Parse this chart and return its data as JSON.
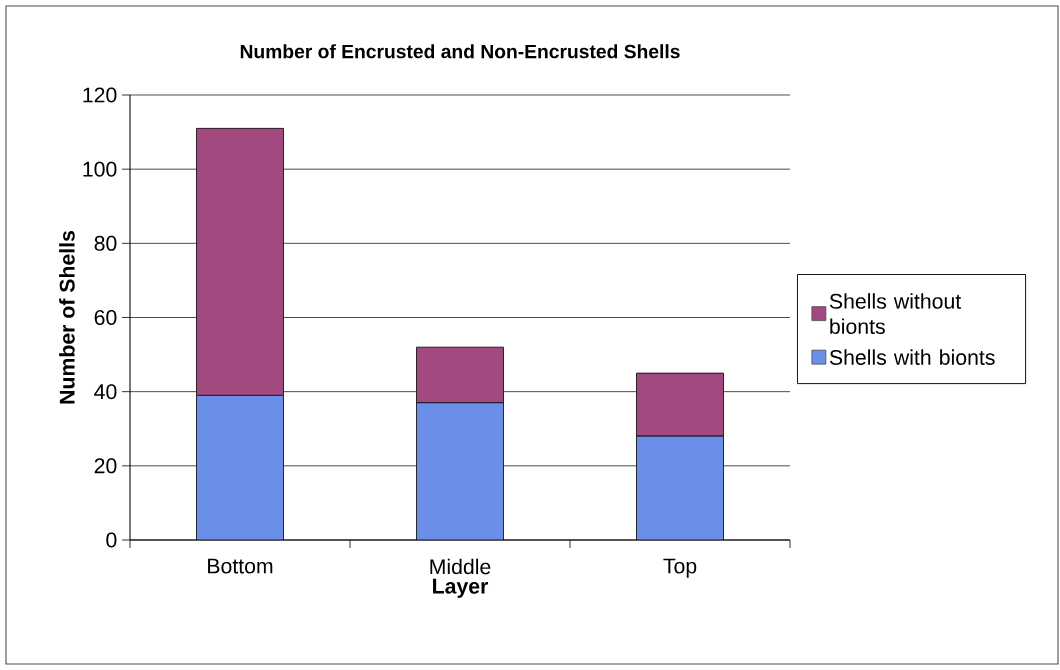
{
  "chart_data": {
    "type": "bar",
    "title": "Number of Encrusted and Non-Encrusted Shells",
    "xlabel": "Layer",
    "ylabel": "Number of Shells",
    "categories": [
      "Bottom",
      "Middle",
      "Top"
    ],
    "stacked": true,
    "series": [
      {
        "name": "Shells with bionts",
        "color": "#6b8fe8",
        "values": [
          39,
          37,
          28
        ]
      },
      {
        "name": "Shells without bionts",
        "color": "#a24a80",
        "values": [
          72,
          15,
          17
        ]
      }
    ],
    "ylim": [
      0,
      120
    ],
    "yticks": [
      0,
      20,
      40,
      60,
      80,
      100,
      120
    ],
    "grid": "y",
    "legend": "right"
  }
}
